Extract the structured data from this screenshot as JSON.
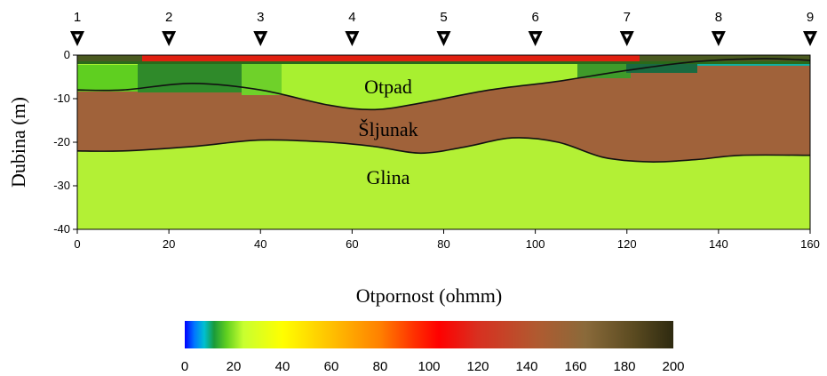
{
  "chart_data": {
    "type": "heatmap",
    "ylabel": "Dubina (m)",
    "x_ticks": [
      "0",
      "20",
      "40",
      "60",
      "80",
      "100",
      "120",
      "140",
      "160"
    ],
    "y_ticks": [
      "0",
      "-10",
      "-20",
      "-30",
      "-40"
    ],
    "xlim": [
      0,
      160
    ],
    "ylim": [
      -40,
      0
    ],
    "electrodes": [
      "1",
      "2",
      "3",
      "4",
      "5",
      "6",
      "7",
      "8",
      "9"
    ],
    "electrode_positions": [
      0,
      20,
      40,
      60,
      80,
      100,
      120,
      140,
      160
    ],
    "layers": [
      {
        "name": "Otpad",
        "color": "#7ed321"
      },
      {
        "name": "Šljunak",
        "color": "#a0623a"
      },
      {
        "name": "Glina",
        "color": "#b5f237"
      }
    ],
    "boundary_otpad_sljunak": {
      "x": [
        0,
        10,
        25,
        40,
        55,
        65,
        75,
        90,
        105,
        120,
        135,
        150,
        160
      ],
      "y": [
        -8,
        -8,
        -6.5,
        -8,
        -11.5,
        -12.5,
        -11,
        -8,
        -6,
        -3.5,
        -1.5,
        -0.8,
        -1.2
      ]
    },
    "boundary_sljunak_glina": {
      "x": [
        0,
        10,
        25,
        40,
        55,
        65,
        75,
        85,
        95,
        105,
        115,
        125,
        135,
        145,
        160
      ],
      "y": [
        -22,
        -22,
        -21,
        -19.5,
        -20,
        -21,
        -22.5,
        -21,
        -19,
        -20,
        -23.5,
        -24.5,
        -24,
        -23,
        -23
      ]
    },
    "colorbar": {
      "title": "Otpornost (ohmm)",
      "ticks": [
        "0",
        "20",
        "40",
        "60",
        "80",
        "100",
        "120",
        "140",
        "160",
        "180",
        "200"
      ],
      "range": [
        0,
        200
      ]
    }
  }
}
